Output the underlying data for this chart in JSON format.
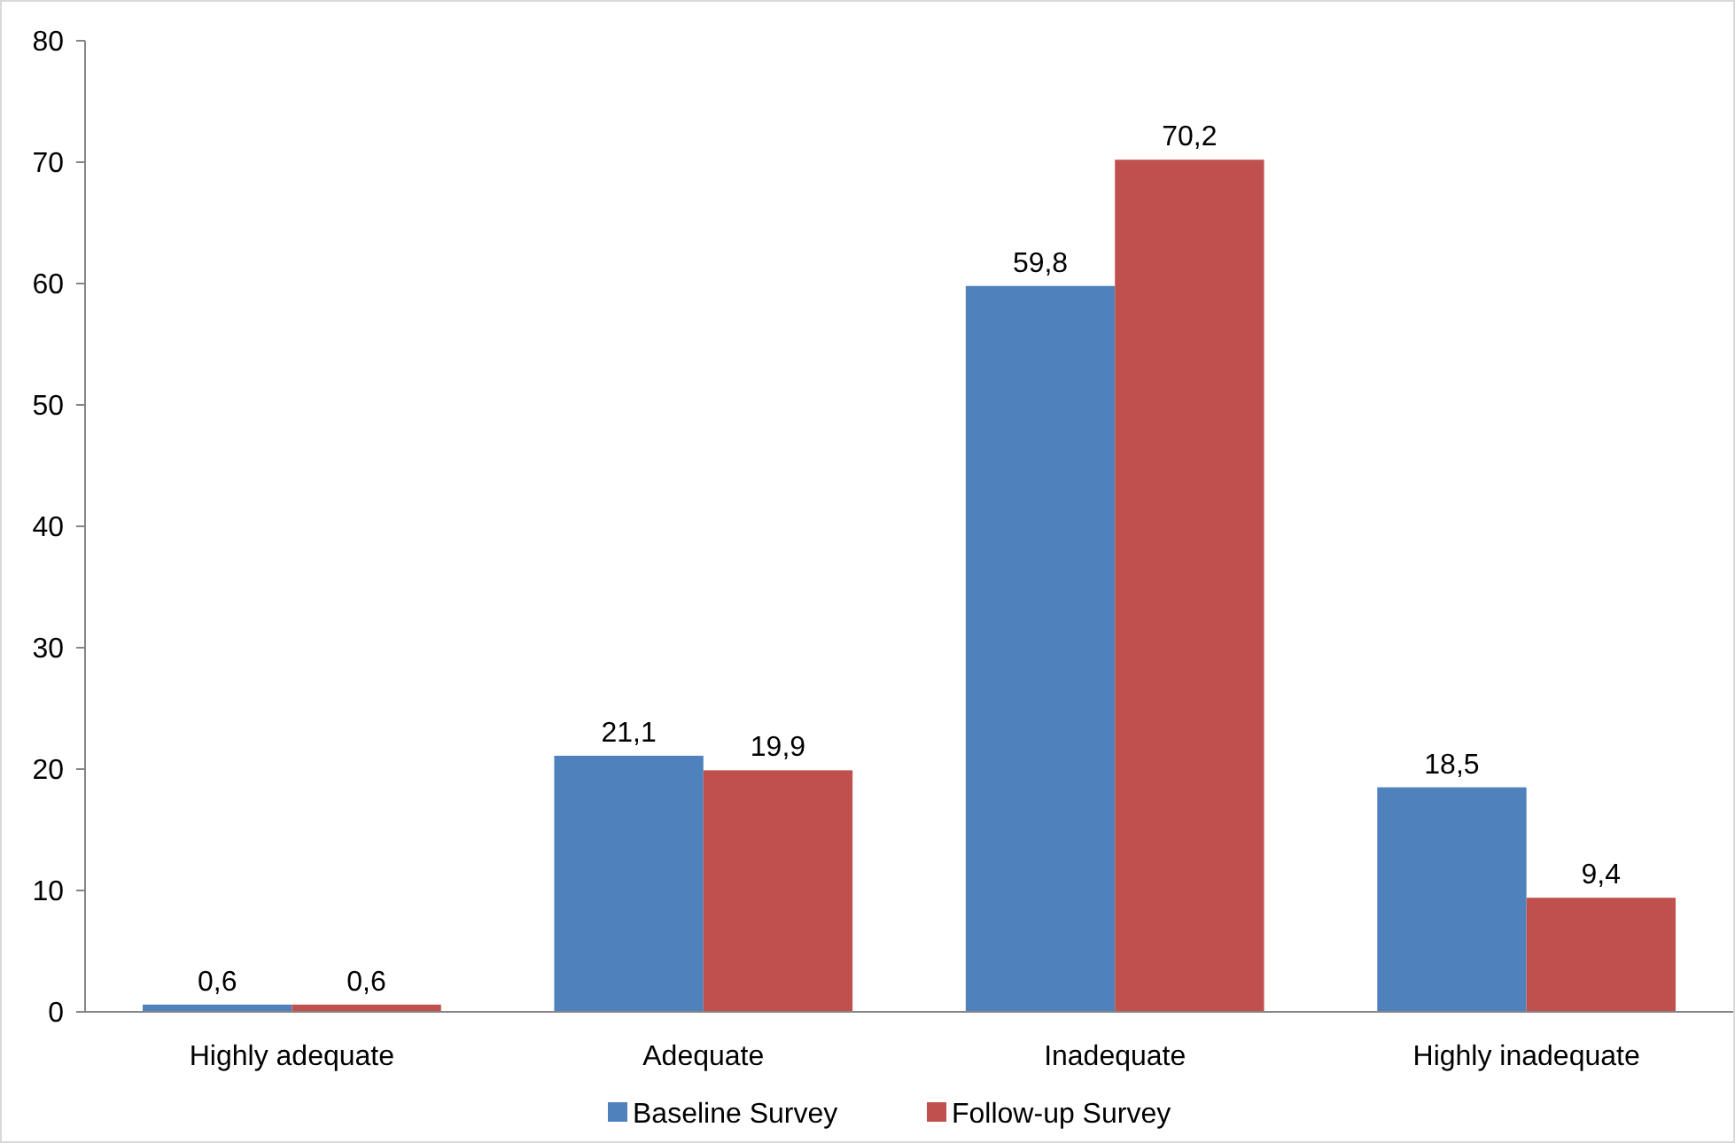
{
  "chart_data": {
    "type": "bar",
    "categories": [
      "Highly adequate",
      "Adequate",
      "Inadequate",
      "Highly inadequate"
    ],
    "series": [
      {
        "name": "Baseline Survey",
        "color": "#4f81bd",
        "values": [
          0.6,
          21.1,
          59.8,
          18.5
        ],
        "value_labels": [
          "0,6",
          "21,1",
          "59,8",
          "18,5"
        ]
      },
      {
        "name": "Follow-up Survey",
        "color": "#c0504d",
        "values": [
          0.6,
          19.9,
          70.2,
          9.4
        ],
        "value_labels": [
          "0,6",
          "19,9",
          "70,2",
          "9,4"
        ]
      }
    ],
    "ylim": [
      0,
      80
    ],
    "yticks": [
      0,
      10,
      20,
      30,
      40,
      50,
      60,
      70,
      80
    ],
    "grid": false,
    "legend": "bottom"
  }
}
